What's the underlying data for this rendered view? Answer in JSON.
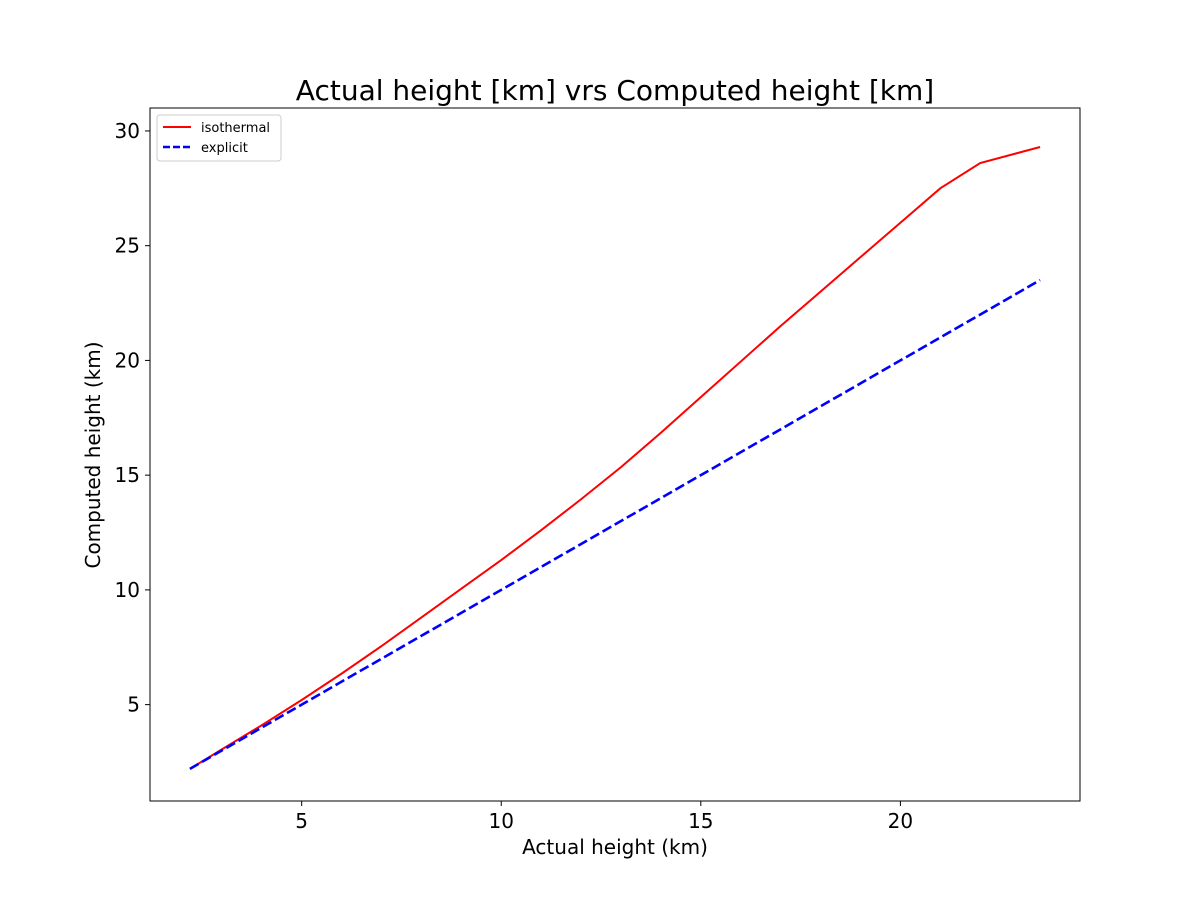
{
  "chart_data": {
    "type": "line",
    "title": "Actual height [km] vrs Computed height [km]",
    "xlabel": "Actual height (km)",
    "ylabel": "Computed height (km)",
    "xlim": [
      1.2,
      24.5
    ],
    "ylim": [
      0.8,
      31.0
    ],
    "xticks": [
      5,
      10,
      15,
      20
    ],
    "yticks": [
      5,
      10,
      15,
      20,
      25,
      30
    ],
    "grid": false,
    "legend_position": "top-left",
    "series": [
      {
        "name": "isothermal",
        "color": "#ff0000",
        "style": "solid",
        "x": [
          2.2,
          3.0,
          4.0,
          5.0,
          6.0,
          7.0,
          8.0,
          9.0,
          10.0,
          11.0,
          12.0,
          13.0,
          14.0,
          15.0,
          16.0,
          17.0,
          18.0,
          19.0,
          20.0,
          21.0,
          22.0,
          23.5
        ],
        "y": [
          2.2,
          3.05,
          4.1,
          5.2,
          6.35,
          7.55,
          8.8,
          10.05,
          11.3,
          12.6,
          13.95,
          15.35,
          16.85,
          18.4,
          19.95,
          21.5,
          23.0,
          24.5,
          26.0,
          27.5,
          28.6,
          29.3
        ]
      },
      {
        "name": "explicit",
        "color": "#0000ff",
        "style": "dashed",
        "x": [
          2.2,
          5.0,
          10.0,
          15.0,
          20.0,
          23.5
        ],
        "y": [
          2.2,
          5.0,
          10.0,
          15.0,
          20.0,
          23.5
        ]
      }
    ]
  }
}
